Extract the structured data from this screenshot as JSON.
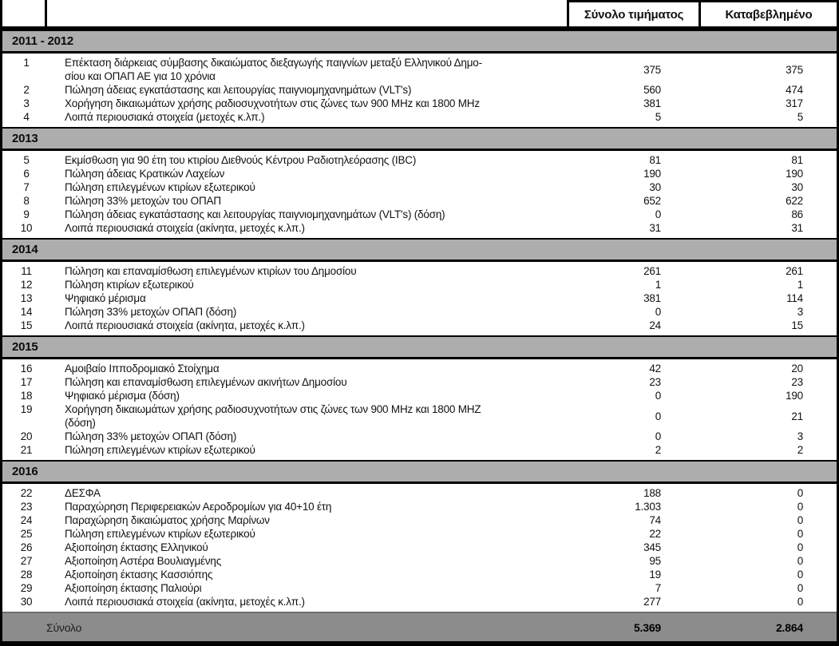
{
  "header": {
    "col_item": "",
    "col_total": "Σύνολο τιμήματος",
    "col_paid": "Καταβεβλημένο"
  },
  "sections": [
    {
      "year": "2011 - 2012",
      "rows": [
        {
          "num": "1",
          "label": "Επέκταση διάρκειας σύμβασης δικαιώματος διεξαγωγής παιγνίων μεταξύ Ελληνικού Δημο-\nσίου και ΟΠΑΠ ΑΕ για 10 χρόνια",
          "total": "375",
          "paid": "375"
        },
        {
          "num": "2",
          "label": "Πώληση άδειας εγκατάστασης και λειτουργίας παιγνιομηχανημάτων (VLT's)",
          "total": "560",
          "paid": "474"
        },
        {
          "num": "3",
          "label": "Χορήγηση δικαιωμάτων χρήσης ραδιοσυχνοτήτων στις ζώνες των 900 MHz και 1800 MHz",
          "total": "381",
          "paid": "317"
        },
        {
          "num": "4",
          "label": "Λοιπά περιουσιακά στοιχεία (μετοχές κ.λπ.)",
          "total": "5",
          "paid": "5"
        }
      ]
    },
    {
      "year": "2013",
      "rows": [
        {
          "num": "5",
          "label": "Εκμίσθωση για 90 έτη του κτιρίου Διεθνούς Κέντρου Ραδιοτηλεόρασης (IBC)",
          "total": "81",
          "paid": "81"
        },
        {
          "num": "6",
          "label": "Πώληση άδειας Κρατικών Λαχείων",
          "total": "190",
          "paid": "190"
        },
        {
          "num": "7",
          "label": "Πώληση επιλεγμένων κτιρίων εξωτερικού",
          "total": "30",
          "paid": "30"
        },
        {
          "num": "8",
          "label": "Πώληση 33% μετοχών του ΟΠΑΠ",
          "total": "652",
          "paid": "622"
        },
        {
          "num": "9",
          "label": "Πώληση άδειας εγκατάστασης και λειτουργίας παιγνιομηχανημάτων (VLT's) (δόση)",
          "total": "0",
          "paid": "86"
        },
        {
          "num": "10",
          "label": "Λοιπά περιουσιακά στοιχεία (ακίνητα, μετοχές κ.λπ.)",
          "total": "31",
          "paid": "31"
        }
      ]
    },
    {
      "year": "2014",
      "rows": [
        {
          "num": "11",
          "label": "Πώληση και επαναμίσθωση επιλεγμένων κτιρίων του Δημοσίου",
          "total": "261",
          "paid": "261"
        },
        {
          "num": "12",
          "label": "Πώληση κτιρίων εξωτερικού",
          "total": "1",
          "paid": "1"
        },
        {
          "num": "13",
          "label": "Ψηφιακό μέρισμα",
          "total": "381",
          "paid": "114"
        },
        {
          "num": "14",
          "label": "Πώληση 33% μετοχών ΟΠΑΠ (δόση)",
          "total": "0",
          "paid": "3"
        },
        {
          "num": "15",
          "label": "Λοιπά περιουσιακά στοιχεία (ακίνητα, μετοχές κ.λπ.)",
          "total": "24",
          "paid": "15"
        }
      ]
    },
    {
      "year": "2015",
      "rows": [
        {
          "num": "16",
          "label": "Αμοιβαίο Ιπποδρομιακό Στοίχημα",
          "total": "42",
          "paid": "20"
        },
        {
          "num": "17",
          "label": "Πώληση και επαναμίσθωση επιλεγμένων ακινήτων Δημοσίου",
          "total": "23",
          "paid": "23"
        },
        {
          "num": "18",
          "label": "Ψηφιακό μέρισμα (δόση)",
          "total": "0",
          "paid": "190"
        },
        {
          "num": "19",
          "label": "Χορήγηση δικαιωμάτων χρήσης ραδιοσυχνοτήτων στις ζώνες των 900 MHz και 1800 MHZ\n(δόση)",
          "total": "0",
          "paid": "21"
        },
        {
          "num": "20",
          "label": "Πώληση 33% μετοχών ΟΠΑΠ (δόση)",
          "total": "0",
          "paid": "3"
        },
        {
          "num": "21",
          "label": "Πώληση επιλεγμένων κτιρίων εξωτερικού",
          "total": "2",
          "paid": "2"
        }
      ]
    },
    {
      "year": "2016",
      "rows": [
        {
          "num": "22",
          "label": "ΔΕΣΦΑ",
          "total": "188",
          "paid": "0"
        },
        {
          "num": "23",
          "label": "Παραχώρηση Περιφερειακών Αεροδρομίων για 40+10 έτη",
          "total": "1.303",
          "paid": "0"
        },
        {
          "num": "24",
          "label": "Παραχώρηση δικαιώματος χρήσης Μαρίνων",
          "total": "74",
          "paid": "0"
        },
        {
          "num": "25",
          "label": "Πώληση επιλεγμένων κτιρίων εξωτερικού",
          "total": "22",
          "paid": "0"
        },
        {
          "num": "26",
          "label": "Αξιοποίηση έκτασης Ελληνικού",
          "total": "345",
          "paid": "0"
        },
        {
          "num": "27",
          "label": "Αξιοποίηση Αστέρα Βουλιαγμένης",
          "total": "95",
          "paid": "0"
        },
        {
          "num": "28",
          "label": "Αξιοποίηση έκτασης Κασσιόπης",
          "total": "19",
          "paid": "0"
        },
        {
          "num": "29",
          "label": "Αξιοποίηση έκτασης Παλιούρι",
          "total": "7",
          "paid": "0"
        },
        {
          "num": "30",
          "label": "Λοιπά περιουσιακά στοιχεία (ακίνητα, μετοχές κ.λπ.)",
          "total": "277",
          "paid": "0"
        }
      ]
    }
  ],
  "footer": {
    "label": "Σύνολο",
    "total": "5.369",
    "paid": "2.864"
  },
  "colors": {
    "band_gray": "#adadad",
    "footer_gray": "#8c8c8c",
    "border_black": "#000000"
  }
}
